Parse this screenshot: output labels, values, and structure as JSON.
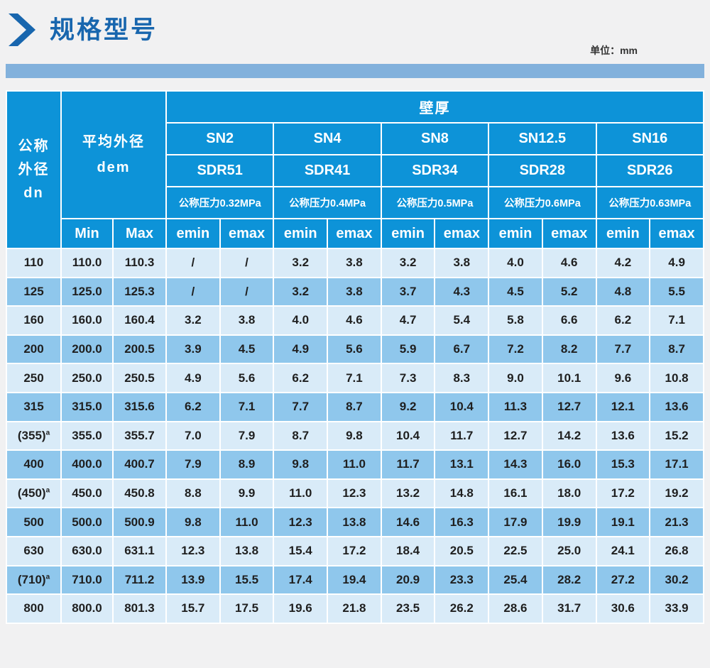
{
  "page": {
    "title": "规格型号",
    "unit_label": "单位：mm"
  },
  "colors": {
    "header_blue": "#0d93d8",
    "row_light": "#d9ebf8",
    "row_medium": "#8fc7ec",
    "banner_blue": "#82b1dc",
    "title_blue": "#1866ae",
    "page_bg": "#f1f1f2",
    "text_dark": "#1f1f1f"
  },
  "table": {
    "corner": {
      "line1": "公称",
      "line2": "外径",
      "line3": "dn"
    },
    "dem": {
      "line1": "平均外径",
      "line2": "dem"
    },
    "dem_sub": [
      "Min",
      "Max"
    ],
    "wall_header": "壁厚",
    "groups": [
      {
        "sn": "SN2",
        "sdr": "SDR51",
        "pressure": "公称压力0.32MPa"
      },
      {
        "sn": "SN4",
        "sdr": "SDR41",
        "pressure": "公称压力0.4MPa"
      },
      {
        "sn": "SN8",
        "sdr": "SDR34",
        "pressure": "公称压力0.5MPa"
      },
      {
        "sn": "SN12.5",
        "sdr": "SDR28",
        "pressure": "公称压力0.6MPa"
      },
      {
        "sn": "SN16",
        "sdr": "SDR26",
        "pressure": "公称压力0.63MPa"
      }
    ],
    "e_labels": {
      "min": "emin",
      "max": "emax"
    },
    "rows": [
      {
        "dn": "110",
        "sup": "",
        "min": "110.0",
        "max": "110.3",
        "values": [
          "/",
          "/",
          "3.2",
          "3.8",
          "3.2",
          "3.8",
          "4.0",
          "4.6",
          "4.2",
          "4.9"
        ]
      },
      {
        "dn": "125",
        "sup": "",
        "min": "125.0",
        "max": "125.3",
        "values": [
          "/",
          "/",
          "3.2",
          "3.8",
          "3.7",
          "4.3",
          "4.5",
          "5.2",
          "4.8",
          "5.5"
        ]
      },
      {
        "dn": "160",
        "sup": "",
        "min": "160.0",
        "max": "160.4",
        "values": [
          "3.2",
          "3.8",
          "4.0",
          "4.6",
          "4.7",
          "5.4",
          "5.8",
          "6.6",
          "6.2",
          "7.1"
        ]
      },
      {
        "dn": "200",
        "sup": "",
        "min": "200.0",
        "max": "200.5",
        "values": [
          "3.9",
          "4.5",
          "4.9",
          "5.6",
          "5.9",
          "6.7",
          "7.2",
          "8.2",
          "7.7",
          "8.7"
        ]
      },
      {
        "dn": "250",
        "sup": "",
        "min": "250.0",
        "max": "250.5",
        "values": [
          "4.9",
          "5.6",
          "6.2",
          "7.1",
          "7.3",
          "8.3",
          "9.0",
          "10.1",
          "9.6",
          "10.8"
        ]
      },
      {
        "dn": "315",
        "sup": "",
        "min": "315.0",
        "max": "315.6",
        "values": [
          "6.2",
          "7.1",
          "7.7",
          "8.7",
          "9.2",
          "10.4",
          "11.3",
          "12.7",
          "12.1",
          "13.6"
        ]
      },
      {
        "dn": "(355)",
        "sup": "a",
        "min": "355.0",
        "max": "355.7",
        "values": [
          "7.0",
          "7.9",
          "8.7",
          "9.8",
          "10.4",
          "11.7",
          "12.7",
          "14.2",
          "13.6",
          "15.2"
        ]
      },
      {
        "dn": "400",
        "sup": "",
        "min": "400.0",
        "max": "400.7",
        "values": [
          "7.9",
          "8.9",
          "9.8",
          "11.0",
          "11.7",
          "13.1",
          "14.3",
          "16.0",
          "15.3",
          "17.1"
        ]
      },
      {
        "dn": "(450)",
        "sup": "a",
        "min": "450.0",
        "max": "450.8",
        "values": [
          "8.8",
          "9.9",
          "11.0",
          "12.3",
          "13.2",
          "14.8",
          "16.1",
          "18.0",
          "17.2",
          "19.2"
        ]
      },
      {
        "dn": "500",
        "sup": "",
        "min": "500.0",
        "max": "500.9",
        "values": [
          "9.8",
          "11.0",
          "12.3",
          "13.8",
          "14.6",
          "16.3",
          "17.9",
          "19.9",
          "19.1",
          "21.3"
        ]
      },
      {
        "dn": "630",
        "sup": "",
        "min": "630.0",
        "max": "631.1",
        "values": [
          "12.3",
          "13.8",
          "15.4",
          "17.2",
          "18.4",
          "20.5",
          "22.5",
          "25.0",
          "24.1",
          "26.8"
        ]
      },
      {
        "dn": "(710)",
        "sup": "a",
        "min": "710.0",
        "max": "711.2",
        "values": [
          "13.9",
          "15.5",
          "17.4",
          "19.4",
          "20.9",
          "23.3",
          "25.4",
          "28.2",
          "27.2",
          "30.2"
        ]
      },
      {
        "dn": "800",
        "sup": "",
        "min": "800.0",
        "max": "801.3",
        "values": [
          "15.7",
          "17.5",
          "19.6",
          "21.8",
          "23.5",
          "26.2",
          "28.6",
          "31.7",
          "30.6",
          "33.9"
        ]
      }
    ]
  }
}
